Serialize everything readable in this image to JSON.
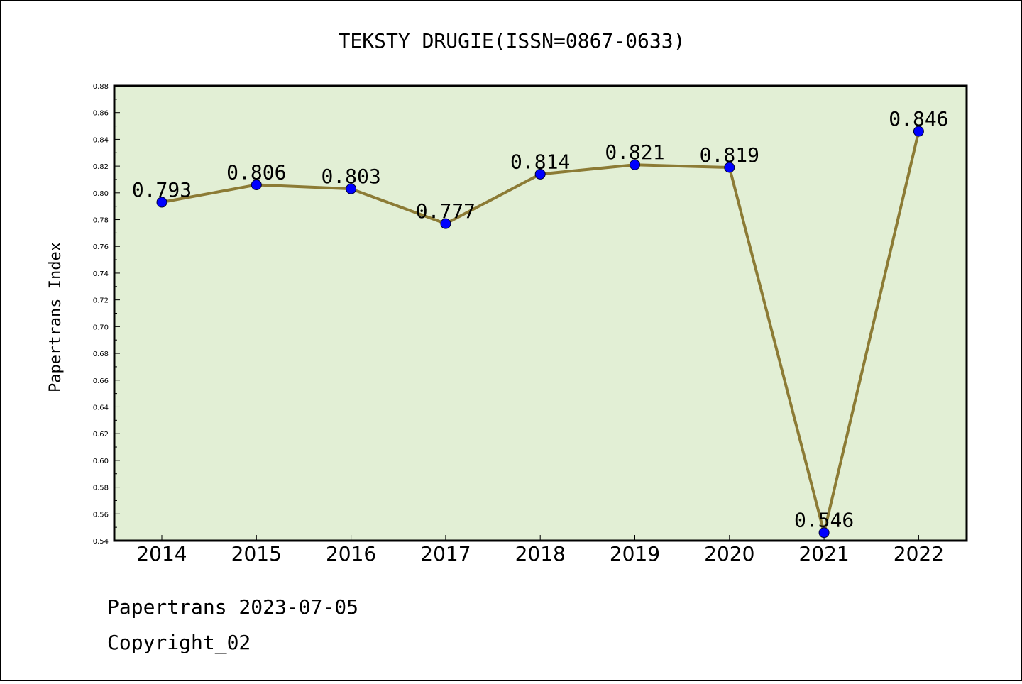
{
  "chart_data": {
    "type": "line",
    "title": "TEKSTY DRUGIE(ISSN=0867-0633)",
    "xlabel": "",
    "ylabel": "Papertrans Index",
    "categories": [
      "2014",
      "2015",
      "2016",
      "2017",
      "2018",
      "2019",
      "2020",
      "2021",
      "2022"
    ],
    "values": [
      0.793,
      0.806,
      0.803,
      0.777,
      0.814,
      0.821,
      0.819,
      0.546,
      0.846
    ],
    "data_labels": [
      "0.793",
      "0.806",
      "0.803",
      "0.777",
      "0.814",
      "0.821",
      "0.819",
      "0.546",
      "0.846"
    ],
    "ylim": [
      0.54,
      0.88
    ],
    "yticks": [
      "0.54",
      "0.56",
      "0.58",
      "0.60",
      "0.62",
      "0.64",
      "0.66",
      "0.68",
      "0.70",
      "0.72",
      "0.74",
      "0.76",
      "0.78",
      "0.80",
      "0.82",
      "0.84",
      "0.86",
      "0.88"
    ],
    "grid": false,
    "colors": {
      "line": "#8c7b35",
      "marker": "#0000ff",
      "plot_background": "#e2efd5"
    }
  },
  "footer": {
    "line1": "Papertrans 2023-07-05",
    "line2": "Copyright_02"
  }
}
